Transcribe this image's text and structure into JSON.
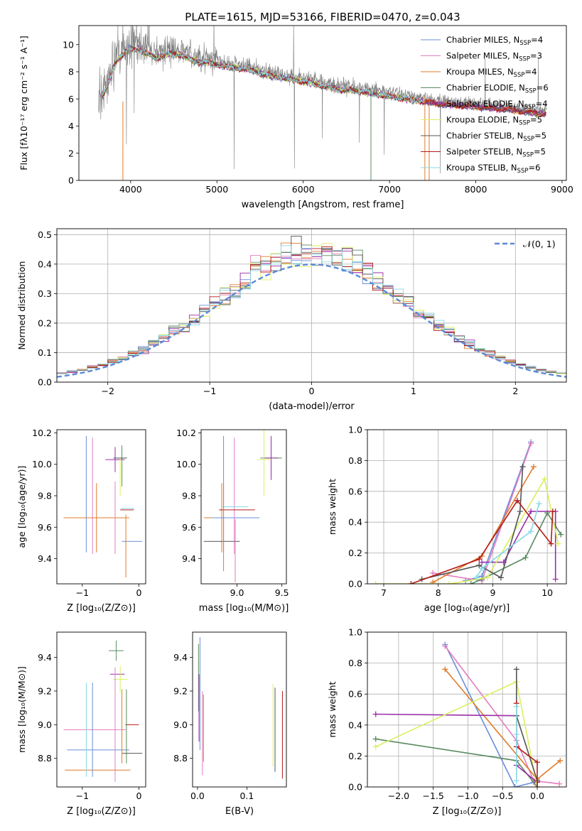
{
  "colors": [
    "#6a8fd8",
    "#e27ec0",
    "#e07b2a",
    "#5a8a60",
    "#9a2fa8",
    "#d9f060",
    "#555555",
    "#b31b1b",
    "#86d9e6"
  ],
  "gray": "#808080",
  "chart_data": [
    {
      "id": "spectrum",
      "type": "line",
      "title": "PLATE=1615, MJD=53166, FIBERID=0470, z=0.043",
      "xlabel": "wavelength [Angstrom, rest frame]",
      "ylabel": "Flux [fλ10⁻¹⁷ erg cm⁻² s⁻¹ A⁻¹]",
      "xlim": [
        3400,
        9050
      ],
      "ylim": [
        0,
        11.4
      ],
      "xticks": [
        4000,
        5000,
        6000,
        7000,
        8000,
        9000
      ],
      "yticks": [
        0,
        2,
        4,
        6,
        8,
        10
      ],
      "grid": false,
      "legend_position": "top-right",
      "legend": [
        {
          "label": "Chabrier MILES, N",
          "sub": "SSP",
          "suffix": "=4"
        },
        {
          "label": "Salpeter MILES, N",
          "sub": "SSP",
          "suffix": "=3"
        },
        {
          "label": "Kroupa MILES, N",
          "sub": "SSP",
          "suffix": "=4"
        },
        {
          "label": "Chabrier ELODIE, N",
          "sub": "SSP",
          "suffix": "=6"
        },
        {
          "label": "Salpeter ELODIE, N",
          "sub": "SSP",
          "suffix": "=4"
        },
        {
          "label": "Kroupa ELODIE, N",
          "sub": "SSP",
          "suffix": "=5"
        },
        {
          "label": "Chabrier STELIB, N",
          "sub": "SSP",
          "suffix": "=5"
        },
        {
          "label": "Salpeter STELIB, N",
          "sub": "SSP",
          "suffix": "=5"
        },
        {
          "label": "Kroupa STELIB, N",
          "sub": "SSP",
          "suffix": "=6"
        }
      ],
      "data_curve": {
        "x": [
          3650,
          3700,
          3750,
          3800,
          3850,
          3900,
          3950,
          4000,
          4100,
          4200,
          4300,
          4400,
          4500,
          4600,
          4700,
          4800,
          4900,
          5000,
          5200,
          5400,
          5600,
          5800,
          6000,
          6200,
          6400,
          6600,
          6800,
          7000,
          7200,
          7400,
          7600,
          7800,
          8000,
          8200,
          8400,
          8600,
          8800
        ],
        "y": [
          6.3,
          6.8,
          7.6,
          8.6,
          9.2,
          9.5,
          9.8,
          10.0,
          9.9,
          9.6,
          9.3,
          9.6,
          9.6,
          9.5,
          9.2,
          9.0,
          9.0,
          8.8,
          8.6,
          8.4,
          8.0,
          7.8,
          7.6,
          7.3,
          7.0,
          6.9,
          6.7,
          6.5,
          6.3,
          6.1,
          5.9,
          5.8,
          5.7,
          5.6,
          5.5,
          5.3,
          5.2
        ]
      }
    },
    {
      "id": "residuals",
      "type": "line",
      "xlabel": "(data-model)/error",
      "ylabel": "Normed distribution",
      "xlim": [
        -2.5,
        2.5
      ],
      "ylim": [
        0,
        0.52
      ],
      "xticks": [
        -2,
        -1,
        0,
        1,
        2
      ],
      "yticks": [
        0.0,
        0.1,
        0.2,
        0.3,
        0.4,
        0.5
      ],
      "grid": true,
      "legend_position": "top-right",
      "legend": [
        {
          "label": "𝒩(0, 1)"
        }
      ]
    },
    {
      "id": "age-vs-Z",
      "type": "scatter",
      "xlabel": "Z [log₁₀(Z/Z⊙)]",
      "ylabel": "age  [log₁₀(age/yr)]",
      "xlim": [
        -1.45,
        0.12
      ],
      "ylim": [
        9.24,
        10.22
      ],
      "xticks": [
        -1,
        0
      ],
      "yticks": [
        9.4,
        9.6,
        9.8,
        10.0,
        10.2
      ],
      "grid": false,
      "points": [
        {
          "x": -0.93,
          "y": 9.81,
          "xerr": 0.0,
          "yerr": 0.37
        },
        {
          "x": -0.82,
          "y": 9.8,
          "xerr": 0.0,
          "yerr": 0.37
        },
        {
          "x": -0.75,
          "y": 9.66,
          "xerr": 0.58,
          "yerr": 0.22
        },
        {
          "x": -0.3,
          "y": 9.99,
          "xerr": 0.0,
          "yerr": 0.13
        },
        {
          "x": -0.42,
          "y": 10.03,
          "xerr": 0.17,
          "yerr": 0.08
        },
        {
          "x": -0.33,
          "y": 9.92,
          "xerr": 0.0,
          "yerr": 0.12
        },
        {
          "x": -0.33,
          "y": 10.04,
          "xerr": 0.12,
          "yerr": 0.0
        },
        {
          "x": -0.21,
          "y": 9.71,
          "xerr": 0.12,
          "yerr": 0.0
        },
        {
          "x": -0.2,
          "y": 9.72,
          "xerr": 0.12,
          "yerr": 0.0
        },
        {
          "x": -0.12,
          "y": 9.51,
          "xerr": 0.18,
          "yerr": 0.0
        },
        {
          "x": -0.42,
          "y": 9.66,
          "xerr": 0.0,
          "yerr": 0.23
        },
        {
          "x": -0.23,
          "y": 9.48,
          "xerr": 0.0,
          "yerr": 0.2
        }
      ]
    },
    {
      "id": "age-vs-mass",
      "type": "scatter",
      "xlabel": "mass [log₁₀(M/M⊙)]",
      "ylabel": "",
      "xlim": [
        8.6,
        9.55
      ],
      "ylim": [
        9.24,
        10.22
      ],
      "xticks": [
        9.0,
        9.5
      ],
      "yticks": [
        9.4,
        9.6,
        9.8,
        10.0,
        10.2
      ],
      "grid": false,
      "points": [
        {
          "x": 8.85,
          "y": 9.81,
          "xerr": 0.0,
          "yerr": 0.37
        },
        {
          "x": 8.97,
          "y": 9.8,
          "xerr": 0.0,
          "yerr": 0.37
        },
        {
          "x": 8.83,
          "y": 9.66,
          "xerr": 0.2,
          "yerr": 0.22
        },
        {
          "x": 9.38,
          "y": 10.04,
          "xerr": 0.12,
          "yerr": 0.12
        },
        {
          "x": 9.38,
          "y": 10.04,
          "xerr": 0.08,
          "yerr": 0.14
        },
        {
          "x": 9.3,
          "y": 10.03,
          "xerr": 0.08,
          "yerr": 0.23
        },
        {
          "x": 8.83,
          "y": 9.51,
          "xerr": 0.2,
          "yerr": 0.0
        },
        {
          "x": 9.0,
          "y": 9.71,
          "xerr": 0.2,
          "yerr": 0.0
        },
        {
          "x": 8.98,
          "y": 9.73,
          "xerr": 0.14,
          "yerr": 0.0
        },
        {
          "x": 8.98,
          "y": 9.66,
          "xerr": 0.27,
          "yerr": 0.0
        },
        {
          "x": 8.98,
          "y": 9.45,
          "xerr": 0.0,
          "yerr": 0.2
        },
        {
          "x": 8.85,
          "y": 9.6,
          "xerr": 0.0,
          "yerr": 0.28
        }
      ]
    },
    {
      "id": "mass-weight-vs-age",
      "type": "line",
      "xlabel": "age  [log₁₀(age/yr)]",
      "ylabel": "mass weight",
      "xlim": [
        6.7,
        10.35
      ],
      "ylim": [
        0,
        1.0
      ],
      "xticks": [
        7,
        8,
        9,
        10
      ],
      "yticks": [
        0.0,
        0.2,
        0.4,
        0.6,
        0.8,
        1.0
      ],
      "grid": true,
      "series": [
        {
          "x": [
            8.5,
            8.8,
            9.7
          ],
          "y": [
            0.02,
            0.05,
            0.92
          ]
        },
        {
          "x": [
            7.9,
            8.8,
            9.7
          ],
          "y": [
            0.07,
            0.02,
            0.91
          ]
        },
        {
          "x": [
            7.9,
            8.8,
            9.75
          ],
          "y": [
            0.01,
            0.18,
            0.76
          ]
        },
        {
          "x": [
            8.6,
            8.8,
            9.6,
            10.0,
            10.25
          ],
          "y": [
            0.0,
            0.03,
            0.17,
            0.46,
            0.32
          ]
        },
        {
          "x": [
            8.8,
            9.2,
            9.7,
            10.15,
            10.15
          ],
          "y": [
            0.14,
            0.14,
            0.47,
            0.47,
            0.03
          ]
        },
        {
          "x": [
            6.85,
            8.2,
            8.9,
            9.95,
            10.2
          ],
          "y": [
            0.0,
            0.0,
            0.04,
            0.68,
            0.26
          ]
        },
        {
          "x": [
            7.7,
            8.75,
            9.15,
            9.5,
            9.55
          ],
          "y": [
            0.03,
            0.12,
            0.04,
            0.47,
            0.76
          ]
        },
        {
          "x": [
            7.5,
            8.75,
            9.45,
            10.07,
            10.1
          ],
          "y": [
            0.0,
            0.16,
            0.54,
            0.26,
            0.47
          ]
        },
        {
          "x": [
            8.7,
            8.8,
            9.7,
            9.85
          ],
          "y": [
            0.04,
            0.1,
            0.34,
            0.52
          ]
        }
      ]
    },
    {
      "id": "mass-vs-Z",
      "type": "scatter",
      "xlabel": "Z [log₁₀(Z/Z⊙)]",
      "ylabel": "mass [log₁₀(M/M⊙)]",
      "xlim": [
        -1.45,
        0.12
      ],
      "ylim": [
        8.63,
        9.55
      ],
      "xticks": [
        -1,
        0
      ],
      "yticks": [
        8.8,
        9.0,
        9.2,
        9.4
      ],
      "grid": false,
      "points": [
        {
          "x": -0.72,
          "y": 8.85,
          "xerr": 0.55,
          "yerr": 0.0
        },
        {
          "x": -0.78,
          "y": 8.97,
          "xerr": 0.55,
          "yerr": 0.0
        },
        {
          "x": -0.73,
          "y": 8.73,
          "xerr": 0.58,
          "yerr": 0.0
        },
        {
          "x": -0.4,
          "y": 9.44,
          "xerr": 0.13,
          "yerr": 0.06
        },
        {
          "x": -0.38,
          "y": 9.3,
          "xerr": 0.13,
          "yerr": 0.0
        },
        {
          "x": -0.33,
          "y": 9.27,
          "xerr": 0.13,
          "yerr": 0.08
        },
        {
          "x": -0.12,
          "y": 8.83,
          "xerr": 0.18,
          "yerr": 0.0
        },
        {
          "x": -0.12,
          "y": 9.0,
          "xerr": 0.12,
          "yerr": 0.0
        },
        {
          "x": -0.93,
          "y": 8.97,
          "xerr": 0.0,
          "yerr": 0.28
        },
        {
          "x": -0.82,
          "y": 8.97,
          "xerr": 0.0,
          "yerr": 0.28
        },
        {
          "x": -0.42,
          "y": 9.0,
          "xerr": 0.0,
          "yerr": 0.34
        },
        {
          "x": -0.3,
          "y": 8.99,
          "xerr": 0.0,
          "yerr": 0.22
        },
        {
          "x": -0.22,
          "y": 8.99,
          "xerr": 0.0,
          "yerr": 0.22
        }
      ]
    },
    {
      "id": "mass-vs-EBV",
      "type": "scatter",
      "xlabel": "E(B-V)",
      "ylabel": "",
      "xlim": [
        -0.01,
        0.18
      ],
      "ylim": [
        8.63,
        9.55
      ],
      "xticks": [
        0.0,
        0.1
      ],
      "yticks": [
        8.8,
        9.0,
        9.2,
        9.4
      ],
      "grid": false,
      "vlines": [
        {
          "x": 0.005,
          "ymin": 8.85,
          "ymax": 9.52
        },
        {
          "x": 0.01,
          "ymin": 8.7,
          "ymax": 9.2
        },
        {
          "x": 0.012,
          "ymin": 8.78,
          "ymax": 9.18
        },
        {
          "x": 0.002,
          "ymin": 9.08,
          "ymax": 9.48
        },
        {
          "x": 0.003,
          "ymin": 8.9,
          "ymax": 9.3
        },
        {
          "x": 0.153,
          "ymin": 8.75,
          "ymax": 9.24
        },
        {
          "x": 0.157,
          "ymin": 8.72,
          "ymax": 9.22
        },
        {
          "x": 0.172,
          "ymin": 8.68,
          "ymax": 9.2
        }
      ]
    },
    {
      "id": "mass-weight-vs-Z",
      "type": "line",
      "xlabel": "Z [log₁₀(Z/Z⊙)]",
      "ylabel": "mass weight",
      "xlim": [
        -2.45,
        0.42
      ],
      "ylim": [
        0,
        1.0
      ],
      "xticks": [
        -2.0,
        -1.5,
        -1.0,
        -0.5,
        0.0
      ],
      "yticks": [
        0.0,
        0.2,
        0.4,
        0.6,
        0.8,
        1.0
      ],
      "grid": true,
      "series": [
        {
          "x": [
            -1.33,
            -0.32,
            -0.05,
            0.0
          ],
          "y": [
            0.92,
            0.0,
            0.03,
            0.04
          ]
        },
        {
          "x": [
            -1.33,
            -0.3,
            -0.05,
            0.32
          ],
          "y": [
            0.91,
            0.3,
            0.04,
            0.02
          ]
        },
        {
          "x": [
            -1.33,
            0.0,
            0.33
          ],
          "y": [
            0.76,
            0.05,
            0.17
          ]
        },
        {
          "x": [
            -2.33,
            -0.3,
            0.0
          ],
          "y": [
            0.31,
            0.17,
            0.0
          ]
        },
        {
          "x": [
            -2.33,
            -0.3,
            -0.3,
            0.0
          ],
          "y": [
            0.47,
            0.46,
            0.14,
            0.03
          ]
        },
        {
          "x": [
            -2.33,
            -0.3,
            0.0
          ],
          "y": [
            0.26,
            0.68,
            0.0
          ]
        },
        {
          "x": [
            -0.3,
            -0.3,
            0.0
          ],
          "y": [
            0.76,
            0.46,
            0.04
          ]
        },
        {
          "x": [
            -0.3,
            -0.3,
            0.0,
            0.0
          ],
          "y": [
            0.54,
            0.26,
            0.16,
            0.0
          ]
        },
        {
          "x": [
            -0.3,
            -0.3,
            -0.3
          ],
          "y": [
            0.52,
            0.34,
            0.04
          ]
        }
      ]
    }
  ]
}
